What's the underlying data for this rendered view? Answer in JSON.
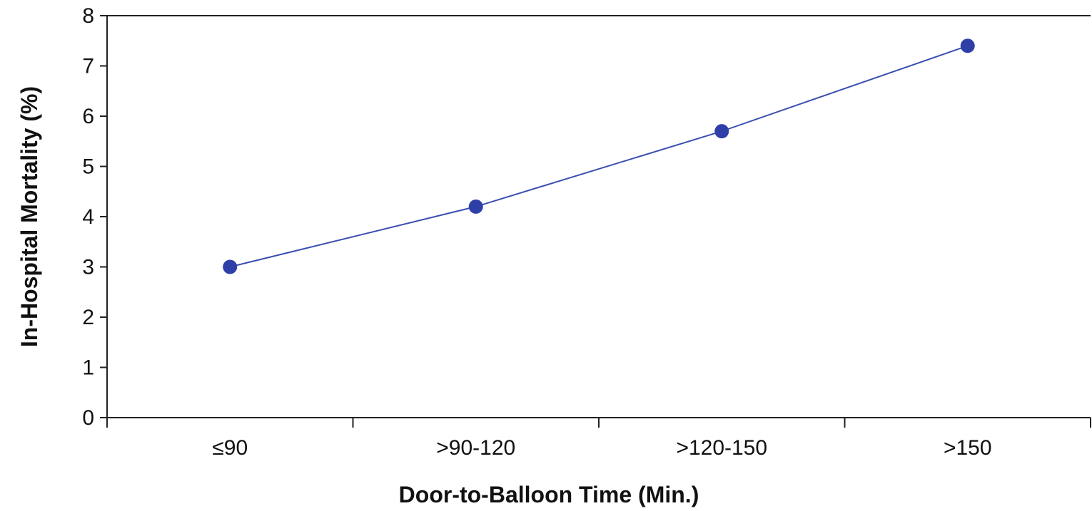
{
  "chart_data": {
    "type": "line",
    "title": "",
    "xlabel": "Door-to-Balloon Time (Min.)",
    "ylabel": "In-Hospital Mortality (%)",
    "categories": [
      "≤90",
      ">90-120",
      ">120-150",
      ">150"
    ],
    "ylim": [
      0,
      8
    ],
    "yticks": [
      "0",
      "1",
      "2",
      "3",
      "4",
      "5",
      "6",
      "7",
      "8"
    ],
    "grid": false,
    "legend": "none",
    "series": [
      {
        "values": [
          3.0,
          4.2,
          5.7,
          7.4
        ]
      }
    ],
    "colors": {
      "line": "#3a4fb0",
      "marker": "#2f3fa8",
      "axis": "#222222"
    }
  }
}
